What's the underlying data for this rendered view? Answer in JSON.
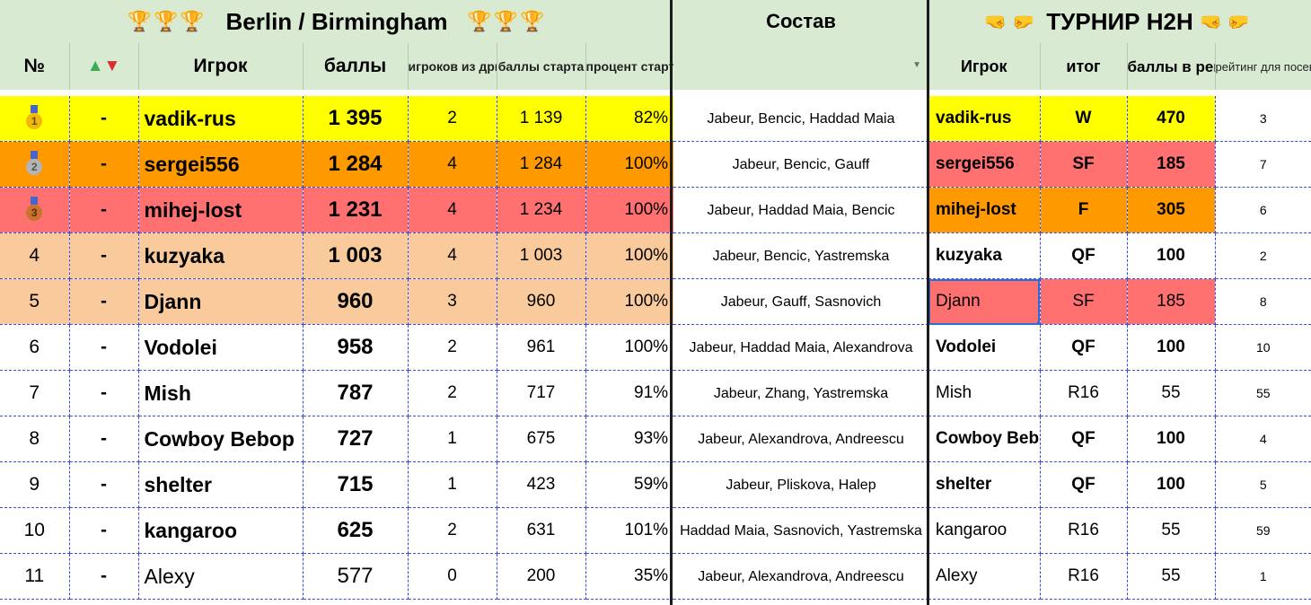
{
  "left": {
    "title": "Berlin / Birmingham",
    "trophy_icons": "🏆🏆🏆",
    "headers": {
      "rank": "№",
      "move_up": "▲",
      "move_down": "▼",
      "player": "Игрок",
      "points": "баллы",
      "dream_players": "игроков из дрим тим",
      "start_points": "баллы старта",
      "start_percent": "процент старта"
    }
  },
  "composition": {
    "header": "Состав",
    "dropdown_icon": "▼"
  },
  "h2h": {
    "title": "ТУРНИР H2H",
    "fist_icons": "🤜🤛",
    "headers": {
      "player": "Игрок",
      "result": "итог",
      "rating_points": "баллы в рейтинг",
      "seed_rating": "рейтинг для посева"
    }
  },
  "colors": {
    "header_bg": "#d9ead3",
    "yellow": "#ffff00",
    "orange": "#ff9900",
    "red": "#ea9999",
    "salmon": "#ff7070",
    "peach": "#f9cb9c",
    "grid_line": "#3c4dd8",
    "selection": "#2a6fd6"
  },
  "rows": [
    {
      "rank": "1",
      "medal": "gold",
      "move": "-",
      "player": "vadik-rus",
      "points": "1 395",
      "dream": "2",
      "start_points": "1 139",
      "start_pct": "82%",
      "composition": "Jabeur, Bencic, Haddad Maia",
      "h2h_player": "vadik-rus",
      "result": "W",
      "rating_points": "470",
      "seed": "3"
    },
    {
      "rank": "2",
      "medal": "silver",
      "move": "-",
      "player": "sergei556",
      "points": "1 284",
      "dream": "4",
      "start_points": "1 284",
      "start_pct": "100%",
      "composition": "Jabeur, Bencic, Gauff",
      "h2h_player": "sergei556",
      "result": "SF",
      "rating_points": "185",
      "seed": "7"
    },
    {
      "rank": "3",
      "medal": "bronze",
      "move": "-",
      "player": "mihej-lost",
      "points": "1 231",
      "dream": "4",
      "start_points": "1 234",
      "start_pct": "100%",
      "composition": "Jabeur, Haddad Maia, Bencic",
      "h2h_player": "mihej-lost",
      "result": "F",
      "rating_points": "305",
      "seed": "6"
    },
    {
      "rank": "4",
      "move": "-",
      "player": "kuzyaka",
      "points": "1 003",
      "dream": "4",
      "start_points": "1 003",
      "start_pct": "100%",
      "composition": "Jabeur, Bencic, Yastremska",
      "h2h_player": "kuzyaka",
      "result": "QF",
      "rating_points": "100",
      "seed": "2"
    },
    {
      "rank": "5",
      "move": "-",
      "player": "Djann",
      "points": "960",
      "dream": "3",
      "start_points": "960",
      "start_pct": "100%",
      "composition": "Jabeur, Gauff, Sasnovich",
      "h2h_player": "Djann",
      "result": "SF",
      "rating_points": "185",
      "seed": "8"
    },
    {
      "rank": "6",
      "move": "-",
      "player": "Vodolei",
      "points": "958",
      "dream": "2",
      "start_points": "961",
      "start_pct": "100%",
      "composition": "Jabeur, Haddad Maia, Alexandrova",
      "h2h_player": "Vodolei",
      "result": "QF",
      "rating_points": "100",
      "seed": "10"
    },
    {
      "rank": "7",
      "move": "-",
      "player": "Mish",
      "points": "787",
      "dream": "2",
      "start_points": "717",
      "start_pct": "91%",
      "composition": "Jabeur, Zhang, Yastremska",
      "h2h_player": "Mish",
      "result": "R16",
      "rating_points": "55",
      "seed": "55"
    },
    {
      "rank": "8",
      "move": "-",
      "player": "Cowboy Bebop",
      "points": "727",
      "dream": "1",
      "start_points": "675",
      "start_pct": "93%",
      "composition": "Jabeur, Alexandrova, Andreescu",
      "h2h_player": "Cowboy Beb",
      "result": "QF",
      "rating_points": "100",
      "seed": "4"
    },
    {
      "rank": "9",
      "move": "-",
      "player": "shelter",
      "points": "715",
      "dream": "1",
      "start_points": "423",
      "start_pct": "59%",
      "composition": "Jabeur, Pliskova, Halep",
      "h2h_player": "shelter",
      "result": "QF",
      "rating_points": "100",
      "seed": "5"
    },
    {
      "rank": "10",
      "move": "-",
      "player": "kangaroo",
      "points": "625",
      "dream": "2",
      "start_points": "631",
      "start_pct": "101%",
      "composition": "Haddad Maia, Sasnovich, Yastremska",
      "h2h_player": "kangaroo",
      "result": "R16",
      "rating_points": "55",
      "seed": "59"
    },
    {
      "rank": "11",
      "move": "-",
      "player": "Alexy",
      "points": "577",
      "dream": "0",
      "start_points": "200",
      "start_pct": "35%",
      "composition": "Jabeur, Alexandrova, Andreescu",
      "h2h_player": "Alexy",
      "result": "R16",
      "rating_points": "55",
      "seed": "1"
    }
  ]
}
